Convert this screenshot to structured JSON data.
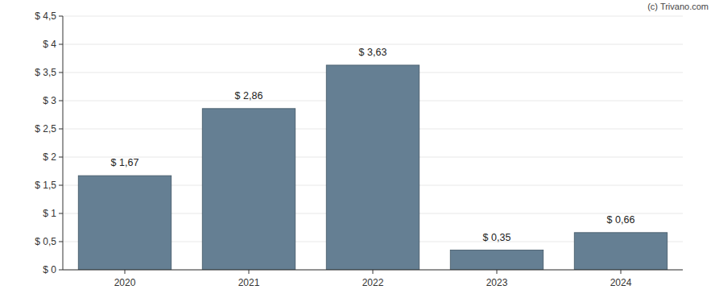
{
  "chart_data": {
    "type": "bar",
    "annotations": [
      "(c) Trivano.com"
    ],
    "categories": [
      "2020",
      "2021",
      "2022",
      "2023",
      "2024"
    ],
    "values": [
      1.67,
      2.86,
      3.63,
      0.35,
      0.66
    ],
    "value_labels": [
      "$ 1,67",
      "$ 2,86",
      "$ 3,63",
      "$ 0,35",
      "$ 0,66"
    ],
    "data_labels": true,
    "color": "#657f93",
    "ylim": [
      0,
      4.5
    ],
    "yticks": [
      {
        "value": 0,
        "label": "$ 0"
      },
      {
        "value": 0.5,
        "label": "$ 0,5"
      },
      {
        "value": 1,
        "label": "$ 1"
      },
      {
        "value": 1.5,
        "label": "$ 1,5"
      },
      {
        "value": 2,
        "label": "$ 2"
      },
      {
        "value": 2.5,
        "label": "$ 2,5"
      },
      {
        "value": 3,
        "label": "$ 3"
      },
      {
        "value": 3.5,
        "label": "$ 3,5"
      },
      {
        "value": 4,
        "label": "$ 4"
      },
      {
        "value": 4.5,
        "label": "$ 4,5"
      }
    ],
    "grid": true
  }
}
